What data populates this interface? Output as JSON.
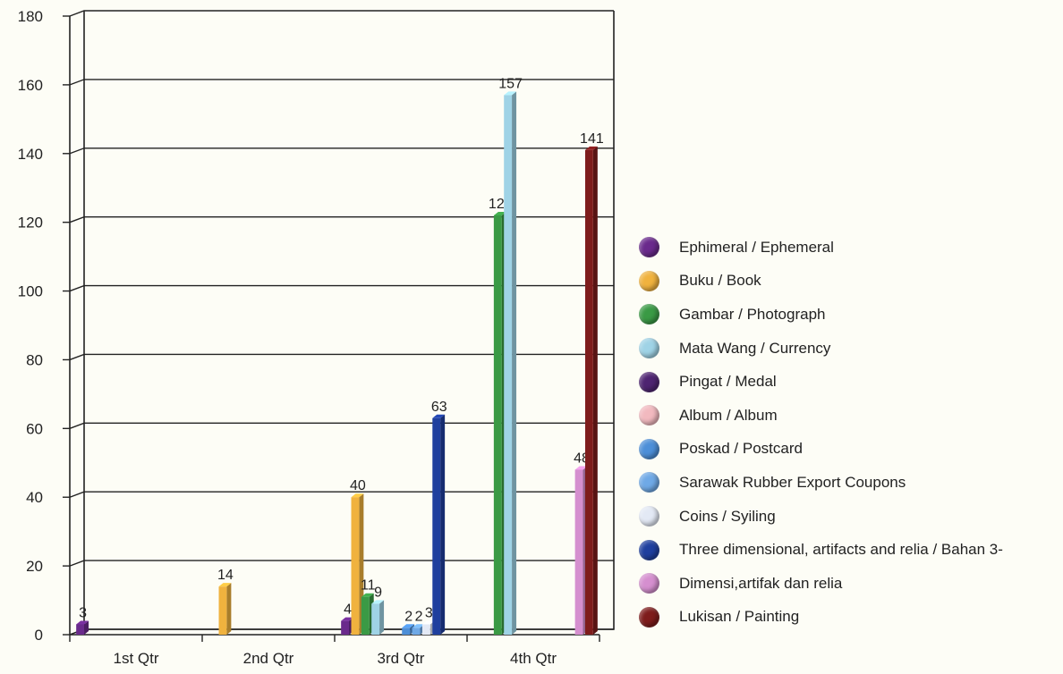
{
  "chart_data": {
    "type": "bar",
    "categories": [
      "1st Qtr",
      "2nd Qtr",
      "3rd Qtr",
      "4th Qtr"
    ],
    "ylim": [
      0,
      180
    ],
    "yticks": [
      0,
      20,
      40,
      60,
      80,
      100,
      120,
      140,
      160,
      180
    ],
    "grid": true,
    "legend_position": "right",
    "series": [
      {
        "name": "Ephimeral / Ephemeral",
        "color": "#6a2a8c",
        "values": [
          3,
          null,
          4,
          null
        ]
      },
      {
        "name": "Buku / Book",
        "color": "#f0b23e",
        "values": [
          null,
          14,
          40,
          null
        ]
      },
      {
        "name": "Gambar / Photograph",
        "color": "#3a9a45",
        "values": [
          null,
          null,
          11,
          122
        ]
      },
      {
        "name": "Mata Wang / Currency",
        "color": "#9fd3e6",
        "values": [
          null,
          null,
          9,
          157
        ]
      },
      {
        "name": "Pingat / Medal",
        "color": "#4e2471",
        "values": [
          null,
          null,
          null,
          null
        ]
      },
      {
        "name": "Album / Album",
        "color": "#f2b9bf",
        "values": [
          null,
          null,
          null,
          null
        ]
      },
      {
        "name": "Poskad / Postcard",
        "color": "#4d8fd8",
        "values": [
          null,
          null,
          2,
          null
        ]
      },
      {
        "name": "Sarawak Rubber Export Coupons",
        "color": "#6fa9e6",
        "values": [
          null,
          null,
          2,
          null
        ]
      },
      {
        "name": "Coins / Syiling",
        "color": "#e3e9f5",
        "values": [
          null,
          null,
          3,
          null
        ]
      },
      {
        "name": "Three dimensional, artifacts and relia / Bahan 3-",
        "color": "#1f3f9e",
        "values": [
          null,
          null,
          63,
          null
        ]
      },
      {
        "name": "Dimensi,artifak dan relia",
        "color": "#d58fcf",
        "values": [
          null,
          null,
          null,
          48
        ]
      },
      {
        "name": "Lukisan / Painting",
        "color": "#7e1c1c",
        "values": [
          null,
          null,
          null,
          141
        ]
      }
    ]
  },
  "legend": [
    {
      "label": "Ephimeral / Ephemeral",
      "color": "#6a2a8c"
    },
    {
      "label": "Buku / Book",
      "color": "#f0b23e"
    },
    {
      "label": "Gambar / Photograph",
      "color": "#3a9a45"
    },
    {
      "label": "Mata Wang / Currency",
      "color": "#9fd3e6"
    },
    {
      "label": "Pingat / Medal",
      "color": "#4e2471"
    },
    {
      "label": "Album / Album",
      "color": "#f2b9bf"
    },
    {
      "label": "Poskad / Postcard",
      "color": "#4d8fd8"
    },
    {
      "label": "Sarawak Rubber Export Coupons",
      "color": "#6fa9e6"
    },
    {
      "label": "Coins / Syiling",
      "color": "#e3e9f5"
    },
    {
      "label": "Three dimensional, artifacts and relia / Bahan 3-",
      "color": "#1f3f9e"
    },
    {
      "label": "Dimensi,artifak dan relia",
      "color": "#d58fcf"
    },
    {
      "label": "Lukisan / Painting",
      "color": "#7e1c1c"
    }
  ]
}
